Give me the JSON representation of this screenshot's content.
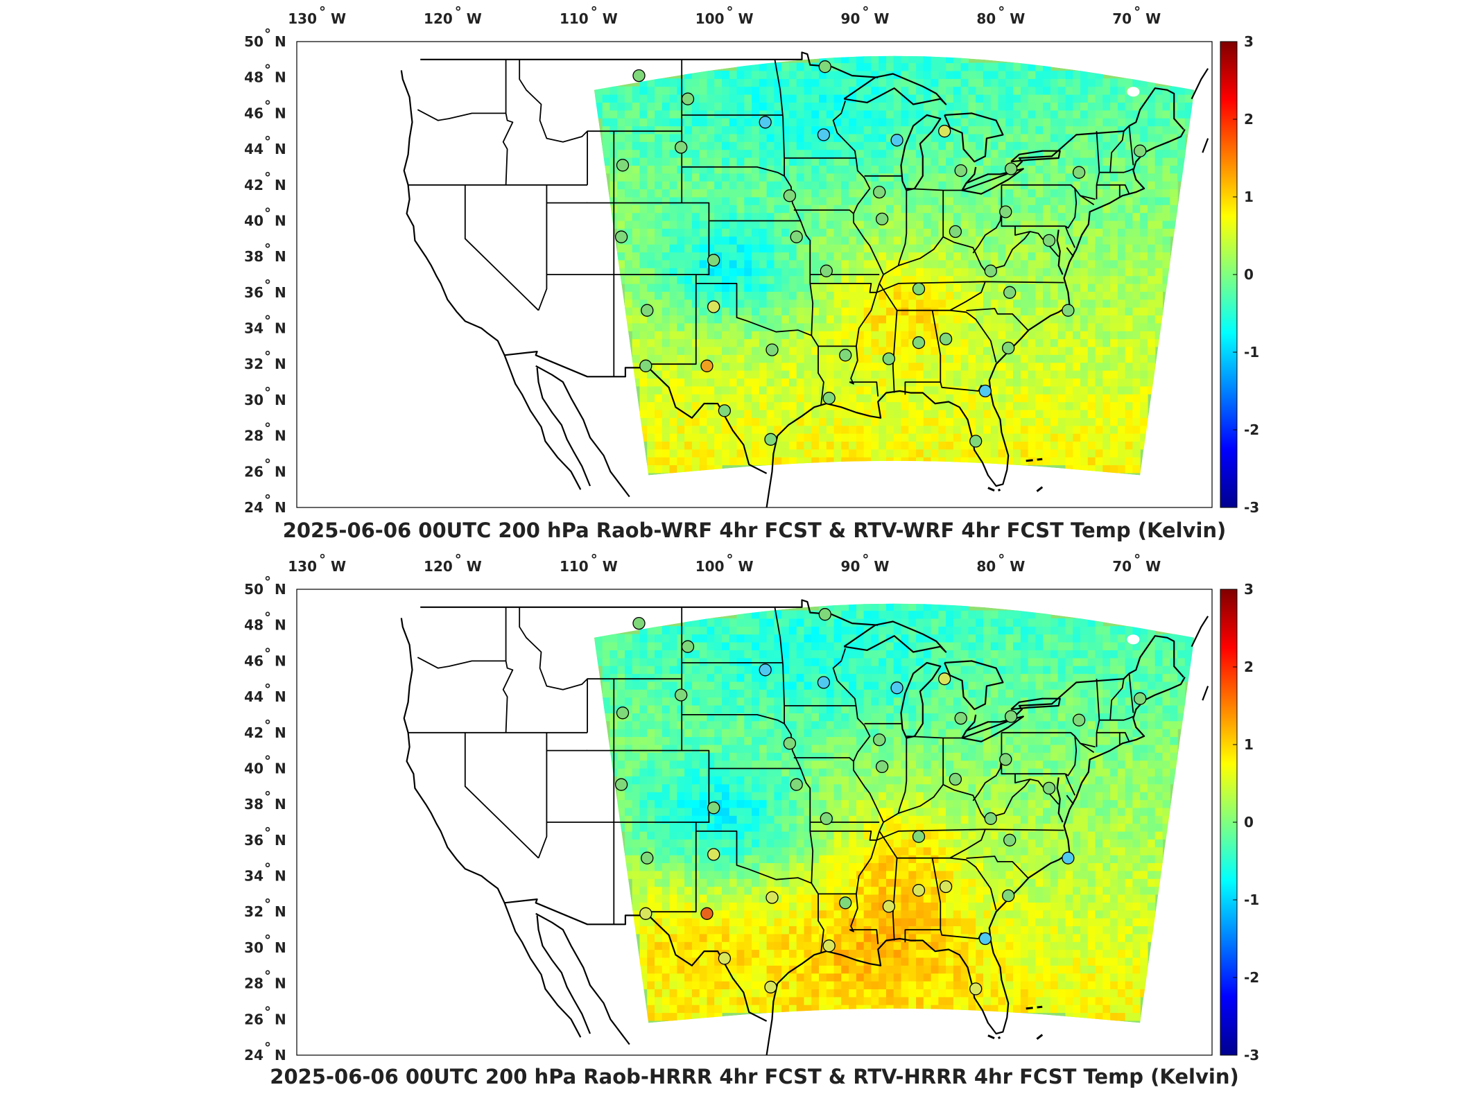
{
  "panels": [
    {
      "title": "2025-06-06 00UTC 200 hPa Raob-WRF 4hr FCST & RTV-WRF 4hr FCST Temp (Kelvin)",
      "variant": "wrf",
      "stations": [
        {
          "lon": -107.2,
          "lat": 48.1,
          "color": "#7fd87a"
        },
        {
          "lon": -103.6,
          "lat": 46.8,
          "color": "#7fd87a"
        },
        {
          "lon": -97.9,
          "lat": 45.5,
          "color": "#4fc9f0"
        },
        {
          "lon": -93.6,
          "lat": 44.8,
          "color": "#4fc9f0"
        },
        {
          "lon": -93.5,
          "lat": 48.6,
          "color": "#7fd87a"
        },
        {
          "lon": -88.2,
          "lat": 44.5,
          "color": "#4fc9f0"
        },
        {
          "lon": -84.7,
          "lat": 45.0,
          "color": "#d9e65c"
        },
        {
          "lon": -108.4,
          "lat": 43.1,
          "color": "#7fd87a"
        },
        {
          "lon": -104.1,
          "lat": 44.1,
          "color": "#7fd87a"
        },
        {
          "lon": -96.1,
          "lat": 41.4,
          "color": "#7fd87a"
        },
        {
          "lon": -89.5,
          "lat": 41.6,
          "color": "#7fd87a"
        },
        {
          "lon": -83.5,
          "lat": 42.8,
          "color": "#7fd87a"
        },
        {
          "lon": -79.8,
          "lat": 42.9,
          "color": "#7fd87a"
        },
        {
          "lon": -74.8,
          "lat": 42.7,
          "color": "#7fd87a"
        },
        {
          "lon": -70.3,
          "lat": 43.9,
          "color": "#7fd87a"
        },
        {
          "lon": -108.5,
          "lat": 39.1,
          "color": "#7fd87a"
        },
        {
          "lon": -101.7,
          "lat": 37.8,
          "color": "#7fd87a"
        },
        {
          "lon": -95.6,
          "lat": 39.1,
          "color": "#7fd87a"
        },
        {
          "lon": -89.3,
          "lat": 40.1,
          "color": "#7fd87a"
        },
        {
          "lon": -83.9,
          "lat": 39.4,
          "color": "#7fd87a"
        },
        {
          "lon": -80.2,
          "lat": 40.5,
          "color": "#7fd87a"
        },
        {
          "lon": -77.0,
          "lat": 38.9,
          "color": "#7fd87a"
        },
        {
          "lon": -93.4,
          "lat": 37.2,
          "color": "#7fd87a"
        },
        {
          "lon": -86.6,
          "lat": 36.2,
          "color": "#7fd87a"
        },
        {
          "lon": -81.3,
          "lat": 37.2,
          "color": "#7fd87a"
        },
        {
          "lon": -79.9,
          "lat": 36.0,
          "color": "#7fd87a"
        },
        {
          "lon": -75.6,
          "lat": 35.0,
          "color": "#7fd87a"
        },
        {
          "lon": -106.6,
          "lat": 35.0,
          "color": "#7fd87a"
        },
        {
          "lon": -101.7,
          "lat": 35.2,
          "color": "#d9e65c"
        },
        {
          "lon": -97.4,
          "lat": 32.8,
          "color": "#7fd87a"
        },
        {
          "lon": -92.0,
          "lat": 32.5,
          "color": "#7fd87a"
        },
        {
          "lon": -88.8,
          "lat": 32.3,
          "color": "#7fd87a"
        },
        {
          "lon": -86.6,
          "lat": 33.2,
          "color": "#7fd87a"
        },
        {
          "lon": -84.6,
          "lat": 33.4,
          "color": "#7fd87a"
        },
        {
          "lon": -80.0,
          "lat": 32.9,
          "color": "#7fd87a"
        },
        {
          "lon": -106.7,
          "lat": 31.9,
          "color": "#7fd87a"
        },
        {
          "lon": -102.2,
          "lat": 31.9,
          "color": "#f0a020"
        },
        {
          "lon": -100.9,
          "lat": 29.4,
          "color": "#7fd87a"
        },
        {
          "lon": -97.5,
          "lat": 27.8,
          "color": "#7fd87a"
        },
        {
          "lon": -93.2,
          "lat": 30.1,
          "color": "#7fd87a"
        },
        {
          "lon": -81.7,
          "lat": 30.5,
          "color": "#4fc9f0"
        },
        {
          "lon": -82.4,
          "lat": 27.7,
          "color": "#7fd87a"
        }
      ]
    },
    {
      "title": "2025-06-06 00UTC 200 hPa Raob-HRRR 4hr FCST & RTV-HRRR 4hr FCST Temp (Kelvin)",
      "variant": "hrrr",
      "stations": [
        {
          "lon": -107.2,
          "lat": 48.1,
          "color": "#7fd87a"
        },
        {
          "lon": -103.6,
          "lat": 46.8,
          "color": "#7fd87a"
        },
        {
          "lon": -97.9,
          "lat": 45.5,
          "color": "#4fc9f0"
        },
        {
          "lon": -93.6,
          "lat": 44.8,
          "color": "#4fc9f0"
        },
        {
          "lon": -93.5,
          "lat": 48.6,
          "color": "#7fd87a"
        },
        {
          "lon": -88.2,
          "lat": 44.5,
          "color": "#4fc9f0"
        },
        {
          "lon": -84.7,
          "lat": 45.0,
          "color": "#d9e65c"
        },
        {
          "lon": -108.4,
          "lat": 43.1,
          "color": "#7fd87a"
        },
        {
          "lon": -104.1,
          "lat": 44.1,
          "color": "#7fd87a"
        },
        {
          "lon": -96.1,
          "lat": 41.4,
          "color": "#7fd87a"
        },
        {
          "lon": -89.5,
          "lat": 41.6,
          "color": "#7fd87a"
        },
        {
          "lon": -83.5,
          "lat": 42.8,
          "color": "#7fd87a"
        },
        {
          "lon": -79.8,
          "lat": 42.9,
          "color": "#7fd87a"
        },
        {
          "lon": -74.8,
          "lat": 42.7,
          "color": "#7fd87a"
        },
        {
          "lon": -70.3,
          "lat": 43.9,
          "color": "#7fd87a"
        },
        {
          "lon": -108.5,
          "lat": 39.1,
          "color": "#7fd87a"
        },
        {
          "lon": -101.7,
          "lat": 37.8,
          "color": "#7fd87a"
        },
        {
          "lon": -95.6,
          "lat": 39.1,
          "color": "#7fd87a"
        },
        {
          "lon": -89.3,
          "lat": 40.1,
          "color": "#7fd87a"
        },
        {
          "lon": -83.9,
          "lat": 39.4,
          "color": "#7fd87a"
        },
        {
          "lon": -80.2,
          "lat": 40.5,
          "color": "#7fd87a"
        },
        {
          "lon": -77.0,
          "lat": 38.9,
          "color": "#7fd87a"
        },
        {
          "lon": -93.4,
          "lat": 37.2,
          "color": "#7fd87a"
        },
        {
          "lon": -86.6,
          "lat": 36.2,
          "color": "#7fd87a"
        },
        {
          "lon": -81.3,
          "lat": 37.2,
          "color": "#7fd87a"
        },
        {
          "lon": -79.9,
          "lat": 36.0,
          "color": "#7fd87a"
        },
        {
          "lon": -75.6,
          "lat": 35.0,
          "color": "#4fc9f0"
        },
        {
          "lon": -106.6,
          "lat": 35.0,
          "color": "#7fd87a"
        },
        {
          "lon": -101.7,
          "lat": 35.2,
          "color": "#d9e65c"
        },
        {
          "lon": -97.4,
          "lat": 32.8,
          "color": "#d9e65c"
        },
        {
          "lon": -92.0,
          "lat": 32.5,
          "color": "#7fd87a"
        },
        {
          "lon": -88.8,
          "lat": 32.3,
          "color": "#d9e65c"
        },
        {
          "lon": -86.6,
          "lat": 33.2,
          "color": "#d9e65c"
        },
        {
          "lon": -84.6,
          "lat": 33.4,
          "color": "#d9e65c"
        },
        {
          "lon": -80.0,
          "lat": 32.9,
          "color": "#7fd87a"
        },
        {
          "lon": -106.7,
          "lat": 31.9,
          "color": "#d9e65c"
        },
        {
          "lon": -102.2,
          "lat": 31.9,
          "color": "#e8641c"
        },
        {
          "lon": -100.9,
          "lat": 29.4,
          "color": "#d9e65c"
        },
        {
          "lon": -97.5,
          "lat": 27.8,
          "color": "#d9e65c"
        },
        {
          "lon": -93.2,
          "lat": 30.1,
          "color": "#d9e65c"
        },
        {
          "lon": -81.7,
          "lat": 30.5,
          "color": "#4fc9f0"
        },
        {
          "lon": -82.4,
          "lat": 27.7,
          "color": "#d9e65c"
        }
      ]
    }
  ],
  "lon_ticks": [
    {
      "value": -130,
      "label": "130",
      "hemi": "W"
    },
    {
      "value": -120,
      "label": "120",
      "hemi": "W"
    },
    {
      "value": -110,
      "label": "110",
      "hemi": "W"
    },
    {
      "value": -100,
      "label": "100",
      "hemi": "W"
    },
    {
      "value": -90,
      "label": "90",
      "hemi": "W"
    },
    {
      "value": -80,
      "label": "80",
      "hemi": "W"
    },
    {
      "value": -70,
      "label": "70",
      "hemi": "W"
    }
  ],
  "lat_ticks": [
    {
      "value": 50,
      "label": "50",
      "hemi": "N"
    },
    {
      "value": 48,
      "label": "48",
      "hemi": "N"
    },
    {
      "value": 46,
      "label": "46",
      "hemi": "N"
    },
    {
      "value": 44,
      "label": "44",
      "hemi": "N"
    },
    {
      "value": 42,
      "label": "42",
      "hemi": "N"
    },
    {
      "value": 40,
      "label": "40",
      "hemi": "N"
    },
    {
      "value": 38,
      "label": "38",
      "hemi": "N"
    },
    {
      "value": 36,
      "label": "36",
      "hemi": "N"
    },
    {
      "value": 34,
      "label": "34",
      "hemi": "N"
    },
    {
      "value": 32,
      "label": "32",
      "hemi": "N"
    },
    {
      "value": 30,
      "label": "30",
      "hemi": "N"
    },
    {
      "value": 28,
      "label": "28",
      "hemi": "N"
    },
    {
      "value": 26,
      "label": "26",
      "hemi": "N"
    },
    {
      "value": 24,
      "label": "24",
      "hemi": "N"
    }
  ],
  "colorbar": {
    "min": -3,
    "max": 3,
    "ticks": [
      "3",
      "2",
      "1",
      "0",
      "-1",
      "-2",
      "-3"
    ],
    "colormap": [
      "#00008f",
      "#0000ff",
      "#0080ff",
      "#00ffff",
      "#80ff80",
      "#ffff00",
      "#ff8000",
      "#ff0000",
      "#800000"
    ]
  },
  "colors": {
    "domain_base": "#8ee070",
    "border": "#000000"
  }
}
